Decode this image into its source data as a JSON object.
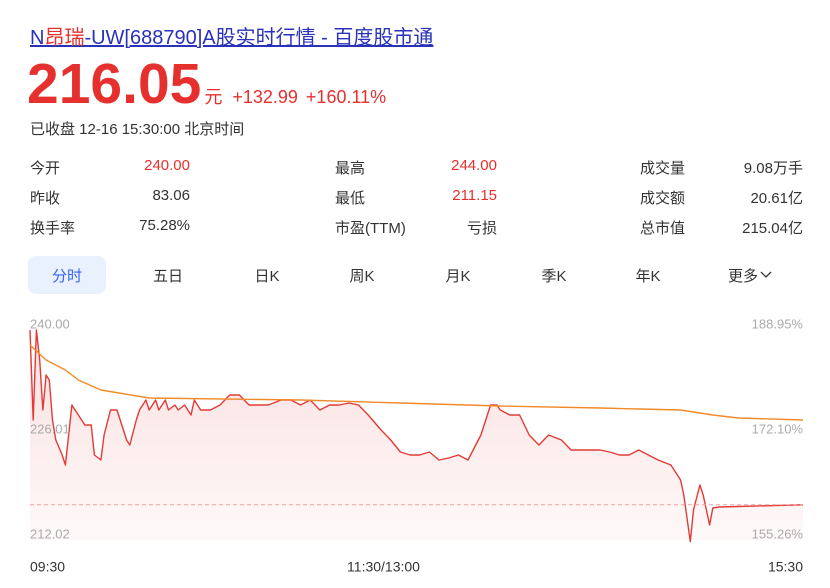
{
  "header": {
    "title_prefix": "N",
    "title_highlight": "昂瑞",
    "title_rest": "-UW[688790]A股实时行情 - 百度股市通",
    "price": "216.05",
    "unit": "元",
    "change": "+132.99",
    "change_pct": "+160.11%",
    "status": "已收盘 12-16 15:30:00 北京时间",
    "color": "#e5302e"
  },
  "stats": [
    [
      {
        "label": "今开",
        "value": "240.00",
        "color": "#e5302e"
      },
      {
        "label": "最高",
        "value": "244.00",
        "color": "#e5302e"
      },
      {
        "label": "成交量",
        "value": "9.08万手"
      }
    ],
    [
      {
        "label": "昨收",
        "value": "83.06"
      },
      {
        "label": "最低",
        "value": "211.15",
        "color": "#e5302e"
      },
      {
        "label": "成交额",
        "value": "20.61亿"
      }
    ],
    [
      {
        "label": "换手率",
        "value": "75.28%"
      },
      {
        "label": "市盈(TTM)",
        "value": "亏损"
      },
      {
        "label": "总市值",
        "value": "215.04亿"
      }
    ]
  ],
  "tabs": [
    "分时",
    "五日",
    "日K",
    "周K",
    "月K",
    "季K",
    "年K",
    "更多"
  ],
  "active_tab": 0,
  "chart_data": {
    "type": "line",
    "xlim": [
      0,
      240
    ],
    "xticks": [
      {
        "value": 0,
        "label": "09:30"
      },
      {
        "value": 120,
        "label": "11:30/13:00"
      },
      {
        "value": 240,
        "label": "15:30"
      }
    ],
    "ylim": [
      212.02,
      240
    ],
    "yticks": [
      {
        "value": 240,
        "label": "240.00"
      },
      226.01,
      212.02
    ],
    "y2lim": [
      155.26,
      188.95
    ],
    "y2ticks": [
      {
        "value": 188.95,
        "label": "188.95%"
      },
      {
        "value": 172.1,
        "label": "172.10%"
      },
      {
        "value": 155.26,
        "label": "155.26%"
      }
    ],
    "last_price_line": true,
    "series": [
      {
        "color": "#e23b37",
        "area": true,
        "x": [
          0,
          1,
          2,
          3,
          4,
          5,
          6,
          7,
          8,
          10,
          11,
          13,
          14,
          17,
          19,
          20,
          22,
          23,
          25,
          27,
          28,
          30,
          31,
          33,
          34,
          36,
          37,
          39,
          40,
          42,
          43,
          45,
          46,
          48,
          50,
          51,
          53,
          56,
          59,
          62,
          65,
          68,
          71,
          74,
          78,
          81,
          84,
          87,
          90,
          93,
          96,
          99,
          102,
          105,
          109,
          112,
          115,
          118,
          121,
          124,
          127,
          130,
          133,
          136,
          140,
          143,
          145,
          146,
          149,
          152,
          155,
          158,
          161,
          165,
          168,
          171,
          177,
          180,
          183,
          186,
          189,
          192,
          195,
          199,
          202,
          203,
          205,
          206,
          208,
          209,
          211,
          212,
          214,
          240
        ],
        "values": [
          239.33,
          227.34,
          239.33,
          235.34,
          228.67,
          233.34,
          232.67,
          227.34,
          224.68,
          222.68,
          221.35,
          229.34,
          228.67,
          226.68,
          226.68,
          222.68,
          222.01,
          225.34,
          228.67,
          228.67,
          227.34,
          224.68,
          224.01,
          227.34,
          228.67,
          230.01,
          228.67,
          230.01,
          228.67,
          230.01,
          228.67,
          229.34,
          228.67,
          229.34,
          228.01,
          230.01,
          228.67,
          228.67,
          229.34,
          230.67,
          230.67,
          229.34,
          229.34,
          229.34,
          230.01,
          230.01,
          229.34,
          230.01,
          228.67,
          229.34,
          229.34,
          229.61,
          229.34,
          228.01,
          226.01,
          224.68,
          223.08,
          222.68,
          222.68,
          223.08,
          222.01,
          222.28,
          222.68,
          222.01,
          225.34,
          229.34,
          229.34,
          228.67,
          228.01,
          228.01,
          225.34,
          224.01,
          225.34,
          224.68,
          223.34,
          223.34,
          223.34,
          223.08,
          222.68,
          222.68,
          223.34,
          222.68,
          222.01,
          221.35,
          219.35,
          217.35,
          211.15,
          215.35,
          218.68,
          217.35,
          213.35,
          215.62,
          215.75,
          216.05
        ]
      },
      {
        "color": "#f08a2a",
        "x": [
          0,
          5,
          11,
          15,
          22,
          37,
          84,
          115,
          146,
          177,
          202,
          212,
          220,
          240
        ],
        "values": [
          237.34,
          235.34,
          234.0,
          232.67,
          231.34,
          230.27,
          230.01,
          229.61,
          229.21,
          228.94,
          228.67,
          228.01,
          227.61,
          227.34
        ]
      }
    ]
  }
}
